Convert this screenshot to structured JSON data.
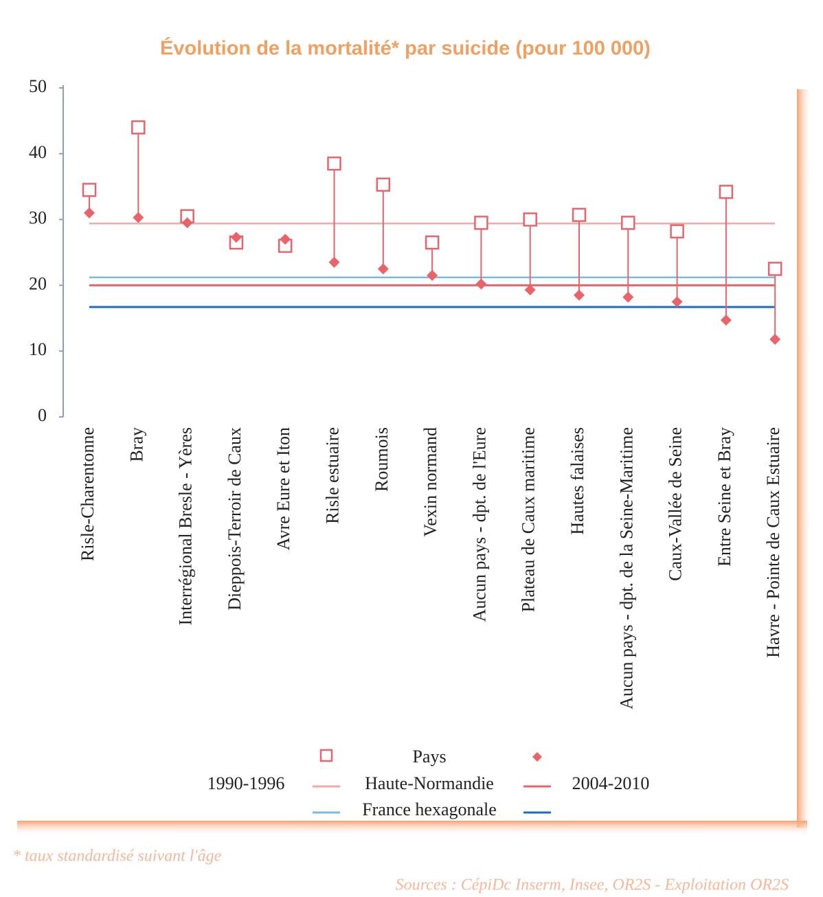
{
  "chart_data": {
    "type": "dot-range",
    "title": "Évolution de la mortalité* par suicide (pour 100 000)",
    "categories": [
      "Risle-Charentonne",
      "Bray",
      "Interrégional Bresle - Yères",
      "Dieppois-Terroir de Caux",
      "Avre Eure et Iton",
      "Risle estuaire",
      "Roumois",
      "Vexin normand",
      "Aucun pays - dpt. de l'Eure",
      "Plateau de Caux maritime",
      "Hautes falaises",
      "Aucun pays - dpt. de la Seine-Maritime",
      "Caux-Vallée de Seine",
      "Entre Seine et Bray",
      "Havre - Pointe de Caux Estuaire"
    ],
    "periods": [
      "1990-1996",
      "2004-2010"
    ],
    "groups": [
      {
        "name": "Pays",
        "series": [
          {
            "marker": "square",
            "color": "#e8646a",
            "values": [
              34.5,
              44,
              30.5,
              26.5,
              26,
              38.5,
              35.3,
              26.5,
              29.5,
              30,
              30.7,
              29.5,
              28.2,
              34.2,
              22.5
            ]
          },
          {
            "marker": "diamond",
            "color": "#e8646a",
            "values": [
              31,
              30.3,
              29.5,
              27.3,
              27,
              23.5,
              22.5,
              21.5,
              20.2,
              19.3,
              18.5,
              18.2,
              17.5,
              14.7,
              11.8
            ]
          }
        ]
      },
      {
        "name": "Haute-Normandie",
        "series": [
          {
            "marker": "line",
            "color": "#f4a6a8",
            "value": 29.4
          },
          {
            "marker": "line",
            "color": "#e8646a",
            "value": 20
          }
        ]
      },
      {
        "name": "France hexagonale",
        "series": [
          {
            "marker": "line",
            "color": "#7ab8e6",
            "value": 21.2
          },
          {
            "marker": "line",
            "color": "#1a6ec4",
            "value": 16.7
          }
        ]
      }
    ],
    "ylim": [
      0,
      50
    ],
    "yticks": [
      0,
      10,
      20,
      30,
      40,
      50
    ],
    "footnote": "* taux standardisé suivant l'âge",
    "source": "Sources : CépiDc Inserm, Insee, OR2S - Exploitation OR2S"
  }
}
